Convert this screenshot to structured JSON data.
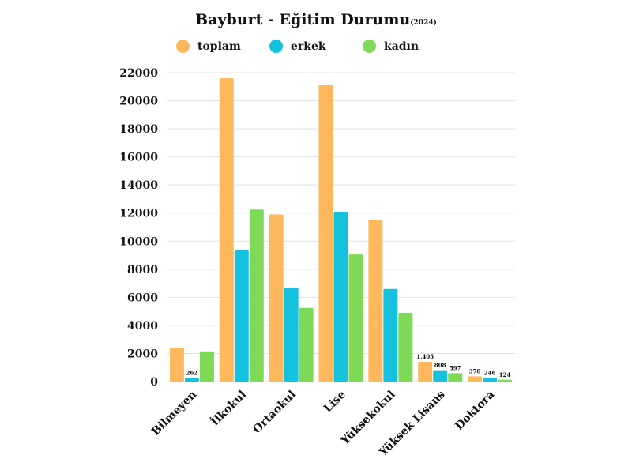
{
  "chart_data": {
    "type": "bar",
    "title": "Bayburt - Eğitim Durumu",
    "subtitle": "(2024)",
    "categories": [
      "Bilmeyen",
      "İlkokul",
      "Ortaokul",
      "Lise",
      "Yüksekokul",
      "Yüksek Lisans",
      "Doktora"
    ],
    "series": [
      {
        "name": "toplam",
        "color": "#FFB85C",
        "values": [
          2400,
          21600,
          11900,
          21150,
          11500,
          1405,
          370
        ]
      },
      {
        "name": "erkek",
        "color": "#14C2E0",
        "values": [
          262,
          9350,
          6650,
          12100,
          6600,
          808,
          246
        ]
      },
      {
        "name": "kadın",
        "color": "#7ED957",
        "values": [
          2150,
          12250,
          5250,
          9050,
          4900,
          597,
          124
        ]
      }
    ],
    "data_labels": [
      {
        "series": 1,
        "index": 0,
        "text": "262"
      },
      {
        "series": 0,
        "index": 5,
        "text": "1.405"
      },
      {
        "series": 1,
        "index": 5,
        "text": "808"
      },
      {
        "series": 2,
        "index": 5,
        "text": "597"
      },
      {
        "series": 0,
        "index": 6,
        "text": "370"
      },
      {
        "series": 1,
        "index": 6,
        "text": "246"
      },
      {
        "series": 2,
        "index": 6,
        "text": "124"
      }
    ],
    "yticks": [
      0,
      2000,
      4000,
      6000,
      8000,
      10000,
      12000,
      14000,
      16000,
      18000,
      20000,
      22000
    ],
    "ylim": [
      0,
      22000
    ],
    "grid": true,
    "legend_position": "top"
  }
}
